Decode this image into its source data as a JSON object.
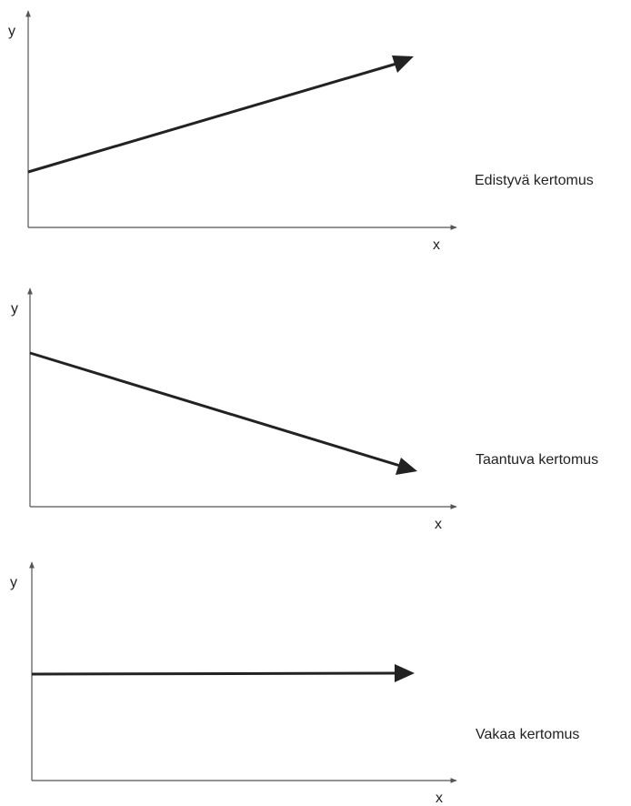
{
  "panels": [
    {
      "y_label": "y",
      "x_label": "x",
      "caption": "Edistyvä kertomus",
      "trend": "rising"
    },
    {
      "y_label": "y",
      "x_label": "x",
      "caption": "Taantuva kertomus",
      "trend": "falling"
    },
    {
      "y_label": "y",
      "x_label": "x",
      "caption": "Vakaa kertomus",
      "trend": "steady"
    }
  ],
  "colors": {
    "axis": "#555555",
    "arrow": "#222222"
  }
}
